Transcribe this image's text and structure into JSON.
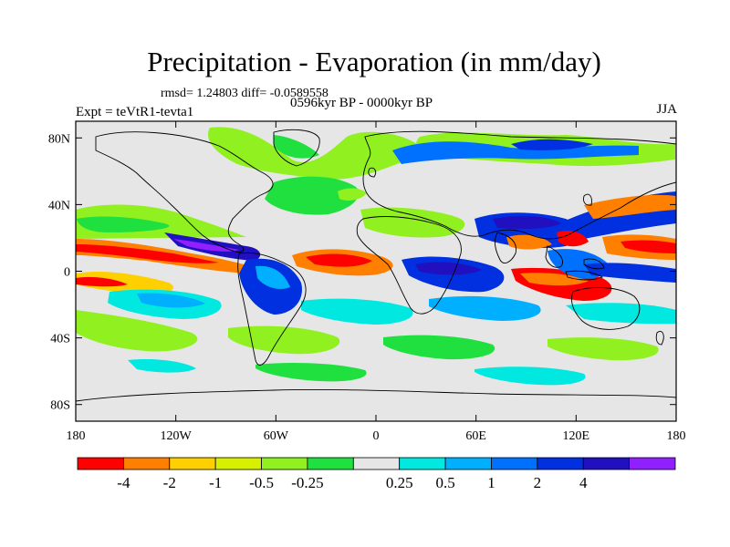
{
  "title": "Precipitation - Evaporation (in mm/day)",
  "stats": "rmsd= 1.24803 diff= -0.0589558",
  "period": "0596kyr BP - 0000kyr BP",
  "experiment": "Expt = teVtR1-tevta1",
  "season": "JJA",
  "map": {
    "projection": "cylindrical-equidistant",
    "lon_range": [
      -180,
      180
    ],
    "lat_range": [
      -90,
      90
    ],
    "x_ticks": [
      {
        "value": -180,
        "label": "180"
      },
      {
        "value": -120,
        "label": "120W"
      },
      {
        "value": -60,
        "label": "60W"
      },
      {
        "value": 0,
        "label": "0"
      },
      {
        "value": 60,
        "label": "60E"
      },
      {
        "value": 120,
        "label": "120E"
      },
      {
        "value": 180,
        "label": "180"
      }
    ],
    "y_ticks": [
      {
        "value": 80,
        "label": "80N"
      },
      {
        "value": 40,
        "label": "40N"
      },
      {
        "value": 0,
        "label": "0"
      },
      {
        "value": -40,
        "label": "40S"
      },
      {
        "value": -80,
        "label": "80S"
      }
    ],
    "background_color": "#e6e6e6",
    "coastline_color": "#000000"
  },
  "colorbar": {
    "colors": [
      "#ff0000",
      "#ff8000",
      "#ffd000",
      "#d8f000",
      "#90f020",
      "#20e040",
      "#e6e6e6",
      "#00e8e0",
      "#00b0ff",
      "#0070ff",
      "#0030e0",
      "#2010c0",
      "#9020ff"
    ],
    "labels": [
      "-4",
      "-2",
      "-1",
      "-0.5",
      "-0.25",
      "0.25",
      "0.5",
      "1",
      "2",
      "4"
    ],
    "label_after_box": [
      0,
      1,
      2,
      3,
      4,
      6,
      7,
      8,
      9,
      10
    ]
  }
}
